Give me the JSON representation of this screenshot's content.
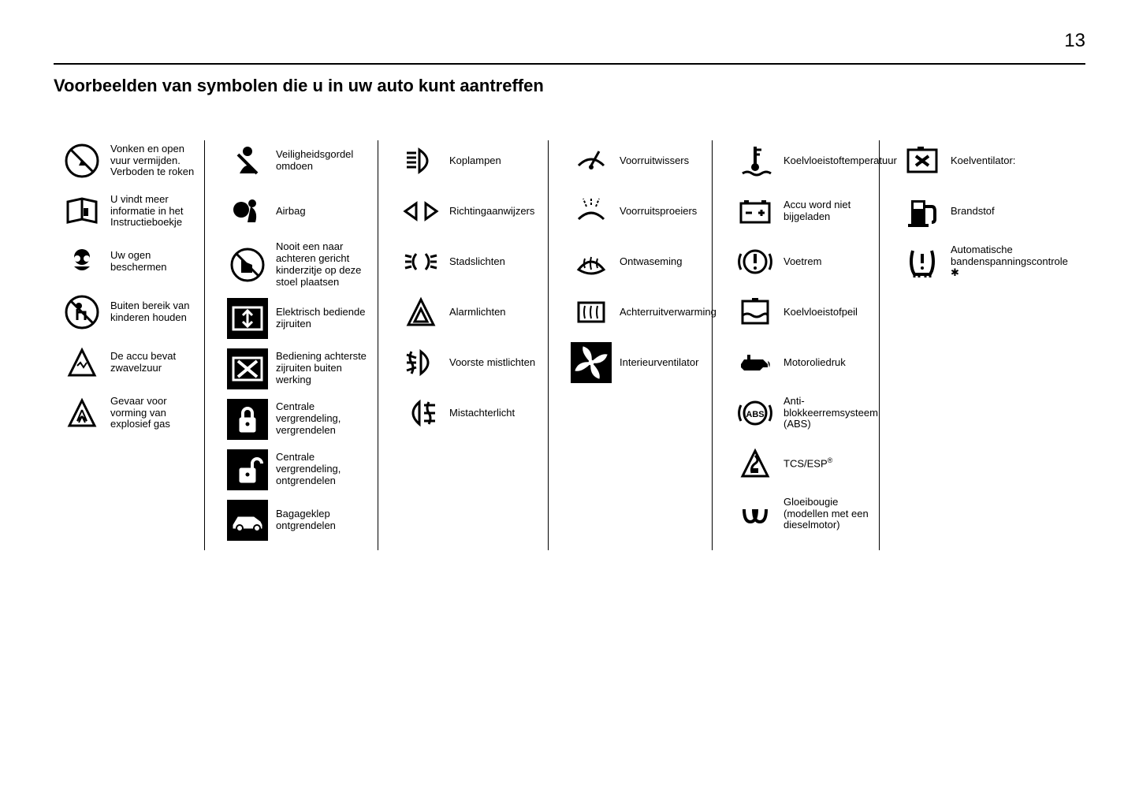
{
  "page_number": "13",
  "title": "Voorbeelden van symbolen die u in uw auto kunt aantreffen",
  "columns": [
    {
      "items": [
        {
          "name": "no-fire-icon",
          "label": "Vonken en open vuur vermijden. Verboden te roken"
        },
        {
          "name": "manual-icon",
          "label": "U vindt meer informatie in het Instructieboekje"
        },
        {
          "name": "eye-protection-icon",
          "label": "Uw ogen beschermen"
        },
        {
          "name": "keep-from-children-icon",
          "label": "Buiten bereik van kinderen houden"
        },
        {
          "name": "battery-acid-icon",
          "label": "De accu bevat zwavelzuur"
        },
        {
          "name": "explosive-gas-icon",
          "label": "Gevaar voor vorming van explosief gas"
        }
      ]
    },
    {
      "items": [
        {
          "name": "seatbelt-icon",
          "label": "Veiligheidsgordel omdoen"
        },
        {
          "name": "airbag-icon",
          "label": "Airbag"
        },
        {
          "name": "no-child-seat-icon",
          "label": "Nooit een naar achteren gericht kinderzitje op deze stoel plaatsen"
        },
        {
          "name": "power-window-icon",
          "label": "Elektrisch bediende zijruiten",
          "inv": true
        },
        {
          "name": "window-disable-icon",
          "label": "Bediening achterste zijruiten buiten werking",
          "inv": true
        },
        {
          "name": "lock-icon",
          "label": "Centrale vergrendeling, vergrendelen",
          "inv": true
        },
        {
          "name": "unlock-icon",
          "label": "Centrale vergrendeling, ontgrendelen",
          "inv": true
        },
        {
          "name": "trunk-icon",
          "label": "Bagageklep ontgrendelen",
          "inv": true
        }
      ]
    },
    {
      "items": [
        {
          "name": "headlights-icon",
          "label": "Koplampen"
        },
        {
          "name": "turn-signal-icon",
          "label": "Richtingaanwijzers"
        },
        {
          "name": "city-lights-icon",
          "label": "Stadslichten"
        },
        {
          "name": "hazard-icon",
          "label": "Alarmlichten"
        },
        {
          "name": "front-fog-icon",
          "label": "Voorste mistlichten"
        },
        {
          "name": "rear-fog-icon",
          "label": "Mistachterlicht"
        }
      ]
    },
    {
      "items": [
        {
          "name": "wiper-icon",
          "label": "Voorruitwissers"
        },
        {
          "name": "washer-icon",
          "label": "Voorruitsproeiers"
        },
        {
          "name": "defog-icon",
          "label": "Ontwaseming"
        },
        {
          "name": "rear-defrost-icon",
          "label": "Achterruitverwarming"
        },
        {
          "name": "fan-icon",
          "label": "Interieurventilator",
          "inv": true
        }
      ]
    },
    {
      "items": [
        {
          "name": "coolant-temp-icon",
          "label": "Koelvloeistoftemperatuur"
        },
        {
          "name": "battery-charge-icon",
          "label": "Accu word niet bijgeladen"
        },
        {
          "name": "brake-icon",
          "label": "Voetrem"
        },
        {
          "name": "coolant-level-icon",
          "label": "Koelvloeistofpeil"
        },
        {
          "name": "oil-pressure-icon",
          "label": "Motoroliedruk"
        },
        {
          "name": "abs-icon",
          "label": "Anti-blokkeerremsysteem (ABS)"
        },
        {
          "name": "tcs-esp-icon",
          "label": "TCS/ESP",
          "sup": "®"
        },
        {
          "name": "glow-plug-icon",
          "label": "Gloeibougie (modellen met een dieselmotor)"
        }
      ]
    },
    {
      "items": [
        {
          "name": "cooling-fan-icon",
          "label": "Koelventilator:"
        },
        {
          "name": "fuel-icon",
          "label": "Brandstof"
        },
        {
          "name": "tire-pressure-icon",
          "label": "Automatische bandenspanningscontrole ✱"
        }
      ]
    }
  ]
}
